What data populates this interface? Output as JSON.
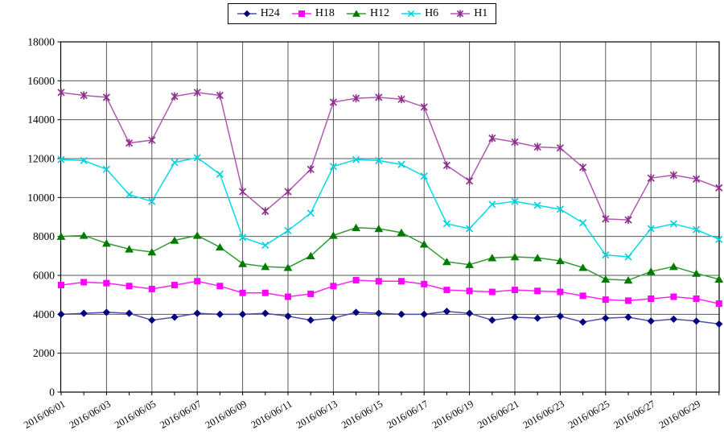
{
  "chart_data": {
    "type": "line",
    "title": "",
    "xlabel": "",
    "ylabel": "",
    "ylim": [
      0,
      18000
    ],
    "ytick_step": 2000,
    "grid": true,
    "legend_position": "top-center",
    "x": [
      "2016/06/01",
      "2016/06/02",
      "2016/06/03",
      "2016/06/04",
      "2016/06/05",
      "2016/06/06",
      "2016/06/07",
      "2016/06/08",
      "2016/06/09",
      "2016/06/10",
      "2016/06/11",
      "2016/06/12",
      "2016/06/13",
      "2016/06/14",
      "2016/06/15",
      "2016/06/16",
      "2016/06/17",
      "2016/06/18",
      "2016/06/19",
      "2016/06/20",
      "2016/06/21",
      "2016/06/22",
      "2016/06/23",
      "2016/06/24",
      "2016/06/25",
      "2016/06/26",
      "2016/06/27",
      "2016/06/28",
      "2016/06/29",
      "2016/06/30"
    ],
    "x_tick_labels": [
      "2016/06/01",
      "2016/06/03",
      "2016/06/05",
      "2016/06/07",
      "2016/06/09",
      "2016/06/11",
      "2016/06/13",
      "2016/06/15",
      "2016/06/17",
      "2016/06/19",
      "2016/06/21",
      "2016/06/23",
      "2016/06/25",
      "2016/06/27",
      "2016/06/29"
    ],
    "y_tick_labels": [
      "0",
      "2000",
      "4000",
      "6000",
      "8000",
      "10000",
      "12000",
      "14000",
      "16000",
      "18000"
    ],
    "series": [
      {
        "name": "H24",
        "marker": "diamond",
        "line_color": "#5050a8",
        "marker_color": "#00007f",
        "values": [
          4000,
          4050,
          4100,
          4050,
          3700,
          3850,
          4050,
          4000,
          4000,
          4050,
          3900,
          3700,
          3800,
          4100,
          4050,
          4000,
          4000,
          4150,
          4050,
          3700,
          3850,
          3800,
          3900,
          3600,
          3800,
          3850,
          3650,
          3750,
          3650,
          3500
        ]
      },
      {
        "name": "H18",
        "marker": "square",
        "line_color": "#ff22ff",
        "marker_color": "#ff00ff",
        "values": [
          5500,
          5650,
          5600,
          5450,
          5300,
          5500,
          5700,
          5450,
          5100,
          5100,
          4900,
          5050,
          5450,
          5750,
          5700,
          5700,
          5550,
          5250,
          5200,
          5150,
          5250,
          5200,
          5150,
          4950,
          4750,
          4700,
          4800,
          4900,
          4800,
          4550
        ]
      },
      {
        "name": "H12",
        "marker": "triangle",
        "line_color": "#2f9e2f",
        "marker_color": "#027a02",
        "values": [
          8000,
          8050,
          7650,
          7350,
          7200,
          7800,
          8050,
          7450,
          6600,
          6450,
          6400,
          7000,
          8050,
          8450,
          8400,
          8200,
          7600,
          6700,
          6550,
          6900,
          6950,
          6900,
          6750,
          6400,
          5800,
          5750,
          6200,
          6450,
          6100,
          5800
        ]
      },
      {
        "name": "H6",
        "marker": "x",
        "line_color": "#00dce8",
        "marker_color": "#00d0dc",
        "values": [
          11950,
          11900,
          11450,
          10150,
          9800,
          11800,
          12050,
          11200,
          7950,
          7550,
          8300,
          9200,
          11600,
          11950,
          11900,
          11700,
          11100,
          8650,
          8400,
          9650,
          9800,
          9600,
          9400,
          8700,
          7050,
          6950,
          8400,
          8650,
          8350,
          7850
        ]
      },
      {
        "name": "H1",
        "marker": "star",
        "line_color": "#b059b0",
        "marker_color": "#8b2d8b",
        "values": [
          15400,
          15250,
          15150,
          12800,
          12950,
          15200,
          15400,
          15250,
          10300,
          9300,
          10300,
          11450,
          14900,
          15100,
          15150,
          15050,
          14650,
          11650,
          10850,
          13050,
          12850,
          12600,
          12550,
          11550,
          8900,
          8850,
          11000,
          11150,
          10950,
          10500
        ]
      }
    ],
    "colors": {
      "grid": "#5a5a5a",
      "axis": "#000000",
      "background": "#ffffff"
    }
  }
}
